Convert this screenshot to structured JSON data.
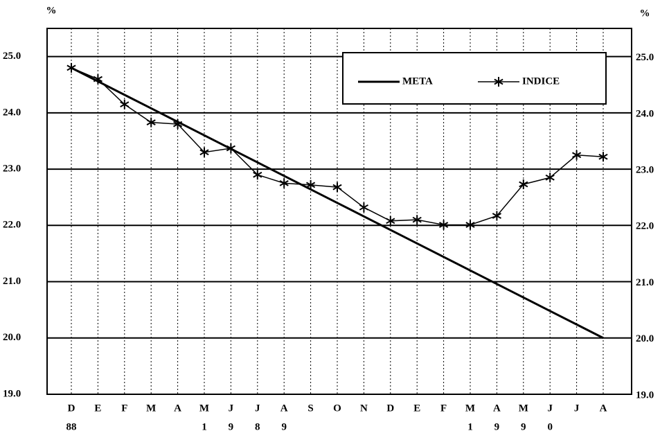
{
  "chart_data": {
    "type": "line",
    "y_unit_left": "%",
    "y_unit_right": "%",
    "categories": [
      "D",
      "E",
      "F",
      "M",
      "A",
      "M",
      "J",
      "J",
      "A",
      "S",
      "O",
      "N",
      "D",
      "E",
      "F",
      "M",
      "A",
      "M",
      "J",
      "J",
      "A"
    ],
    "category_years": [
      "88",
      null,
      null,
      null,
      null,
      "1",
      "9",
      "8",
      "9",
      null,
      null,
      null,
      null,
      null,
      null,
      "1",
      "9",
      "9",
      "0",
      null,
      null
    ],
    "series": [
      {
        "name": "META",
        "color": "#000000",
        "marker": "none",
        "values": [
          24.8,
          24.56,
          24.32,
          24.08,
          23.84,
          23.6,
          23.36,
          23.12,
          22.88,
          22.64,
          22.4,
          22.16,
          21.92,
          21.68,
          21.44,
          21.2,
          20.96,
          20.72,
          20.48,
          20.24,
          20.0
        ]
      },
      {
        "name": "INDICE",
        "color": "#000000",
        "marker": "asterisk",
        "values": [
          24.8,
          24.6,
          24.15,
          23.83,
          23.8,
          23.3,
          23.37,
          22.9,
          22.75,
          22.72,
          22.68,
          22.32,
          22.08,
          22.1,
          22.01,
          22.01,
          22.17,
          22.73,
          22.85,
          23.25,
          23.22
        ]
      }
    ],
    "ylim": [
      19,
      25.5
    ],
    "yticks": [
      {
        "value": 19,
        "label": "19.0"
      },
      {
        "value": 20,
        "label": "20.0"
      },
      {
        "value": 21,
        "label": "21.0"
      },
      {
        "value": 22,
        "label": "22.0"
      },
      {
        "value": 23,
        "label": "23.0"
      },
      {
        "value": 24,
        "label": "24.0"
      },
      {
        "value": 25,
        "label": "25.0"
      }
    ],
    "grid": true,
    "legend": "upper right"
  }
}
